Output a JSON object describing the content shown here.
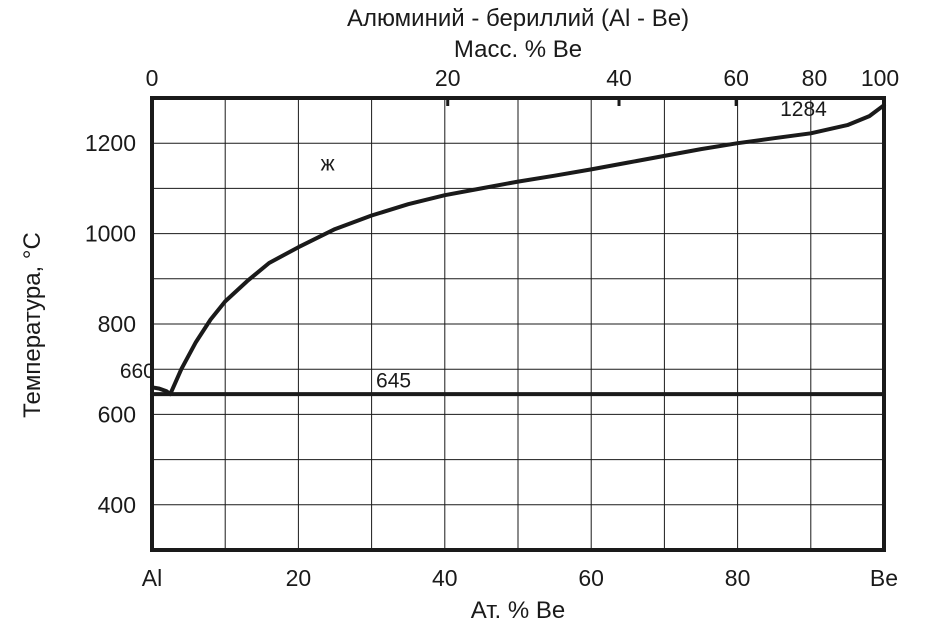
{
  "chart_data": {
    "type": "line",
    "title": "Алюминий - бериллий (Al - Be)",
    "top_axis_label": "Масс. % Be",
    "xlabel": "Ат. % Be",
    "ylabel": "Температура,  °С",
    "xlim": [
      0,
      100
    ],
    "ylim": [
      300,
      1300
    ],
    "x_ticks": [
      {
        "value": 0,
        "label": "Al"
      },
      {
        "value": 20,
        "label": "20"
      },
      {
        "value": 40,
        "label": "40"
      },
      {
        "value": 60,
        "label": "60"
      },
      {
        "value": 80,
        "label": "80"
      },
      {
        "value": 100,
        "label": "Be"
      }
    ],
    "x_grid": [
      0,
      10,
      20,
      30,
      40,
      50,
      60,
      70,
      80,
      90,
      100
    ],
    "y_ticks": [
      {
        "value": 400,
        "label": "400"
      },
      {
        "value": 600,
        "label": "600"
      },
      {
        "value": 800,
        "label": "800"
      },
      {
        "value": 1000,
        "label": "1000"
      },
      {
        "value": 1200,
        "label": "1200"
      }
    ],
    "y_grid": [
      300,
      400,
      500,
      600,
      700,
      800,
      900,
      1000,
      1100,
      1200,
      1300
    ],
    "top_ticks": [
      {
        "at_percent": 0,
        "label": "0"
      },
      {
        "at_percent": 40.4,
        "label": "20"
      },
      {
        "at_percent": 63.8,
        "label": "40"
      },
      {
        "at_percent": 79.8,
        "label": "60"
      },
      {
        "at_percent": 90.5,
        "label": "80"
      },
      {
        "at_percent": 100,
        "label": "100"
      }
    ],
    "grid": true,
    "series": [
      {
        "curve": "liquidus-al",
        "x": [
          0,
          1,
          2,
          2.5
        ],
        "y": [
          660,
          657,
          651,
          645
        ]
      },
      {
        "curve": "liquidus-be",
        "x": [
          2.5,
          4,
          6,
          8,
          10,
          13,
          16,
          20,
          25,
          30,
          35,
          40,
          45,
          50,
          55,
          60,
          65,
          70,
          75,
          80,
          85,
          90,
          95,
          98,
          100
        ],
        "y": [
          645,
          700,
          760,
          810,
          850,
          895,
          935,
          970,
          1010,
          1040,
          1065,
          1085,
          1100,
          1115,
          1128,
          1142,
          1157,
          1172,
          1187,
          1200,
          1211,
          1222,
          1240,
          1260,
          1284
        ]
      },
      {
        "curve": "eutectic-line",
        "x": [
          0,
          100
        ],
        "y": [
          645,
          645
        ]
      }
    ],
    "annotations": [
      {
        "text": "ж",
        "x": 24,
        "y": 1140
      },
      {
        "text": "660",
        "x": -2,
        "y": 680
      },
      {
        "text": "645",
        "x": 33,
        "y": 660
      },
      {
        "text": "1284",
        "x": 89,
        "y": 1260
      }
    ]
  }
}
